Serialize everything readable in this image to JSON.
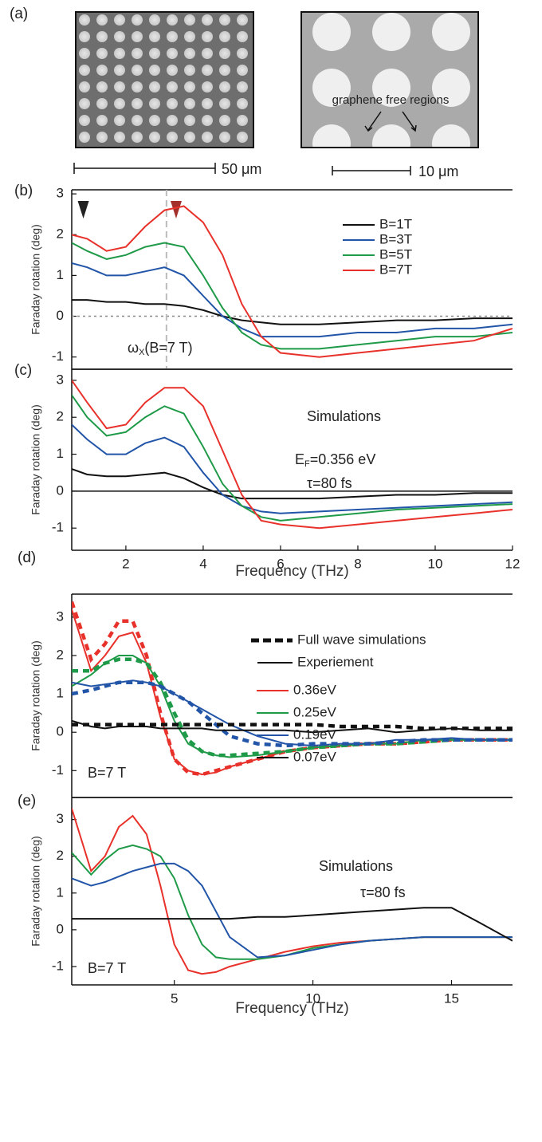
{
  "panel_a": {
    "label": "(a)",
    "caption": "graphene free regions",
    "scale_bars": [
      "50 μm",
      "10 μm"
    ]
  },
  "chart_data": [
    {
      "type": "line",
      "panel_label": "(b)",
      "y_label": "Faraday rotation (deg)",
      "x": [
        0.6,
        1,
        1.5,
        2,
        2.5,
        3,
        3.5,
        4,
        4.5,
        5,
        5.5,
        6,
        7,
        8,
        9,
        10,
        11,
        12
      ],
      "xlim": [
        0.6,
        12
      ],
      "ylim": [
        -1.3,
        3.1
      ],
      "yticks": [
        -1,
        0,
        1,
        2,
        3
      ],
      "reference_line": {
        "y": 0,
        "style": "dotted"
      },
      "vertical_line": {
        "x": 3.05,
        "style": "dashed"
      },
      "markers": [
        {
          "x": 0.9,
          "color": "#222222"
        },
        {
          "x": 3.3,
          "color": "#a3302a"
        }
      ],
      "annotations": [
        {
          "parts": [
            "ω",
            "X",
            "(B=7 T)"
          ]
        }
      ],
      "series": [
        {
          "name": "B=1T",
          "color": "#111111",
          "values": [
            0.4,
            0.4,
            0.35,
            0.35,
            0.3,
            0.3,
            0.25,
            0.15,
            0,
            -0.1,
            -0.15,
            -0.2,
            -0.2,
            -0.15,
            -0.1,
            -0.1,
            -0.05,
            -0.05
          ]
        },
        {
          "name": "B=3T",
          "color": "#2255a8",
          "values": [
            1.3,
            1.2,
            1.0,
            1.0,
            1.1,
            1.2,
            1.0,
            0.5,
            0,
            -0.3,
            -0.5,
            -0.5,
            -0.5,
            -0.4,
            -0.4,
            -0.3,
            -0.3,
            -0.2
          ]
        },
        {
          "name": "B=5T",
          "color": "#1f9a48",
          "values": [
            1.8,
            1.6,
            1.4,
            1.5,
            1.7,
            1.8,
            1.7,
            1.0,
            0.2,
            -0.4,
            -0.7,
            -0.8,
            -0.8,
            -0.7,
            -0.6,
            -0.5,
            -0.5,
            -0.4
          ]
        },
        {
          "name": "B=7T",
          "color": "#e8312a",
          "values": [
            2.0,
            1.9,
            1.6,
            1.7,
            2.2,
            2.6,
            2.7,
            2.3,
            1.5,
            0.3,
            -0.5,
            -0.9,
            -1.0,
            -0.9,
            -0.8,
            -0.7,
            -0.6,
            -0.3
          ]
        }
      ]
    },
    {
      "type": "line",
      "panel_label": "(c)",
      "y_label": "Faraday rotation (deg)",
      "x_label": "Frequency (THz)",
      "x": [
        0.6,
        1,
        1.5,
        2,
        2.5,
        3,
        3.5,
        4,
        4.5,
        5,
        5.5,
        6,
        7,
        8,
        9,
        10,
        11,
        12
      ],
      "xlim": [
        0.6,
        12
      ],
      "ylim": [
        -1.6,
        3.3
      ],
      "yticks": [
        -1,
        0,
        1,
        2,
        3
      ],
      "xticks": [
        2,
        4,
        6,
        8,
        10,
        12
      ],
      "reference_line": {
        "y": 0,
        "style": "solid"
      },
      "annotations": [
        {
          "text": "Simulations"
        },
        {
          "parts": [
            "E",
            "F",
            "=0.356 eV"
          ]
        },
        {
          "text": "τ=80 fs"
        }
      ],
      "series": [
        {
          "color": "#111111",
          "values": [
            0.6,
            0.45,
            0.4,
            0.4,
            0.45,
            0.5,
            0.35,
            0.1,
            -0.1,
            -0.2,
            -0.2,
            -0.2,
            -0.2,
            -0.15,
            -0.1,
            -0.1,
            -0.05,
            -0.05
          ]
        },
        {
          "color": "#2255a8",
          "values": [
            1.8,
            1.4,
            1.0,
            1.0,
            1.3,
            1.45,
            1.2,
            0.5,
            -0.1,
            -0.4,
            -0.55,
            -0.6,
            -0.55,
            -0.5,
            -0.45,
            -0.4,
            -0.35,
            -0.3
          ]
        },
        {
          "color": "#1f9a48",
          "values": [
            2.6,
            2.0,
            1.5,
            1.6,
            2.0,
            2.3,
            2.1,
            1.2,
            0.2,
            -0.4,
            -0.7,
            -0.8,
            -0.7,
            -0.6,
            -0.5,
            -0.45,
            -0.4,
            -0.35
          ]
        },
        {
          "color": "#e8312a",
          "values": [
            3.0,
            2.4,
            1.7,
            1.8,
            2.4,
            2.8,
            2.8,
            2.3,
            1.1,
            -0.1,
            -0.8,
            -0.9,
            -1.0,
            -0.9,
            -0.8,
            -0.7,
            -0.6,
            -0.5
          ]
        }
      ]
    },
    {
      "type": "line",
      "panel_label": "(d)",
      "y_label": "Faraday rotation (deg)",
      "x": [
        1.3,
        2,
        2.5,
        3,
        3.5,
        4,
        4.5,
        5,
        5.5,
        6,
        6.5,
        7,
        8,
        9,
        10,
        11,
        12,
        13,
        14,
        15,
        16,
        17.2
      ],
      "xlim": [
        1.3,
        17.2
      ],
      "ylim": [
        -1.7,
        3.6
      ],
      "yticks": [
        -1,
        0,
        1,
        2,
        3
      ],
      "line_styles": [
        {
          "style": "dashed",
          "label": "Full wave simulations"
        },
        {
          "style": "solid",
          "label": "Experiement"
        }
      ],
      "annotations": [
        {
          "text": "B=7 T"
        }
      ],
      "series": [
        {
          "name": "0.36eV",
          "color": "#e8312a",
          "simulation": [
            3.4,
            1.9,
            2.3,
            2.9,
            2.9,
            2.0,
            0.5,
            -0.7,
            -1.05,
            -1.1,
            -1.0,
            -0.9,
            -0.7,
            -0.5,
            -0.4,
            -0.35,
            -0.3,
            -0.3,
            -0.25,
            -0.2,
            -0.2,
            -0.2
          ],
          "experiment": [
            3.2,
            1.6,
            2.0,
            2.5,
            2.6,
            1.8,
            0.4,
            -0.7,
            -1.0,
            -1.1,
            -1.05,
            -0.9,
            -0.7,
            -0.5,
            -0.4,
            -0.35,
            -0.3,
            -0.3,
            -0.2,
            -0.2,
            -0.2,
            -0.2
          ]
        },
        {
          "name": "0.25eV",
          "color": "#1f9a48",
          "simulation": [
            1.6,
            1.6,
            1.8,
            1.9,
            1.9,
            1.8,
            1.3,
            0.5,
            -0.2,
            -0.5,
            -0.6,
            -0.6,
            -0.55,
            -0.5,
            -0.4,
            -0.35,
            -0.3,
            -0.3,
            -0.25,
            -0.2,
            -0.2,
            -0.2
          ],
          "experiment": [
            1.2,
            1.5,
            1.8,
            2.0,
            2.0,
            1.8,
            1.2,
            0.3,
            -0.3,
            -0.5,
            -0.6,
            -0.65,
            -0.6,
            -0.5,
            -0.4,
            -0.35,
            -0.3,
            -0.3,
            -0.2,
            -0.2,
            -0.2,
            -0.2
          ]
        },
        {
          "name": "0.19eV",
          "color": "#2255a8",
          "simulation": [
            1.0,
            1.1,
            1.2,
            1.3,
            1.3,
            1.3,
            1.2,
            1.0,
            0.8,
            0.5,
            0.2,
            -0.1,
            -0.3,
            -0.35,
            -0.3,
            -0.3,
            -0.3,
            -0.25,
            -0.2,
            -0.2,
            -0.2,
            -0.2
          ],
          "experiment": [
            1.3,
            1.2,
            1.25,
            1.3,
            1.35,
            1.3,
            1.2,
            1.0,
            0.8,
            0.6,
            0.4,
            0.2,
            -0.1,
            -0.3,
            -0.35,
            -0.3,
            -0.3,
            -0.2,
            -0.2,
            -0.15,
            -0.2,
            -0.2
          ]
        },
        {
          "name": "0.07eV",
          "color": "#111111",
          "simulation": [
            0.2,
            0.2,
            0.2,
            0.2,
            0.2,
            0.2,
            0.2,
            0.2,
            0.2,
            0.2,
            0.2,
            0.2,
            0.2,
            0.2,
            0.2,
            0.15,
            0.15,
            0.15,
            0.1,
            0.1,
            0.1,
            0.1
          ],
          "experiment": [
            0.3,
            0.15,
            0.1,
            0.15,
            0.15,
            0.15,
            0.1,
            0.1,
            0.1,
            0.1,
            0.05,
            0.05,
            0.05,
            0.05,
            0.0,
            0.05,
            0.1,
            0.0,
            0.05,
            0.1,
            0.05,
            0.05
          ]
        }
      ]
    },
    {
      "type": "line",
      "panel_label": "(e)",
      "y_label": "Faraday rotation (deg)",
      "x_label": "Frequency (THz)",
      "x": [
        1.3,
        2,
        2.5,
        3,
        3.5,
        4,
        4.5,
        5,
        5.5,
        6,
        6.5,
        7,
        8,
        9,
        10,
        11,
        12,
        13,
        14,
        15,
        16,
        17.2
      ],
      "xlim": [
        1.3,
        17.2
      ],
      "ylim": [
        -1.5,
        3.6
      ],
      "yticks": [
        -1,
        0,
        1,
        2,
        3
      ],
      "xticks": [
        5,
        10,
        15
      ],
      "annotations": [
        {
          "text": "Simulations"
        },
        {
          "text": "τ=80 fs"
        },
        {
          "text": "B=7 T"
        }
      ],
      "series": [
        {
          "color": "#e8312a",
          "values": [
            3.3,
            1.6,
            2.0,
            2.8,
            3.1,
            2.6,
            1.2,
            -0.4,
            -1.1,
            -1.2,
            -1.15,
            -1.0,
            -0.8,
            -0.6,
            -0.45,
            -0.35,
            -0.3,
            -0.25,
            -0.2,
            -0.2,
            -0.2,
            -0.2
          ]
        },
        {
          "color": "#1f9a48",
          "values": [
            2.1,
            1.5,
            1.9,
            2.2,
            2.3,
            2.2,
            2.0,
            1.4,
            0.4,
            -0.4,
            -0.75,
            -0.8,
            -0.8,
            -0.7,
            -0.5,
            -0.4,
            -0.3,
            -0.25,
            -0.2,
            -0.2,
            -0.2,
            -0.2
          ]
        },
        {
          "color": "#2255a8",
          "values": [
            1.4,
            1.2,
            1.3,
            1.45,
            1.6,
            1.7,
            1.8,
            1.8,
            1.6,
            1.2,
            0.5,
            -0.2,
            -0.75,
            -0.7,
            -0.55,
            -0.4,
            -0.3,
            -0.25,
            -0.2,
            -0.2,
            -0.2,
            -0.2
          ]
        },
        {
          "color": "#111111",
          "values": [
            0.3,
            0.3,
            0.3,
            0.3,
            0.3,
            0.3,
            0.3,
            0.3,
            0.3,
            0.3,
            0.3,
            0.3,
            0.35,
            0.35,
            0.4,
            0.45,
            0.5,
            0.55,
            0.6,
            0.6,
            0.2,
            -0.3
          ]
        }
      ]
    }
  ]
}
